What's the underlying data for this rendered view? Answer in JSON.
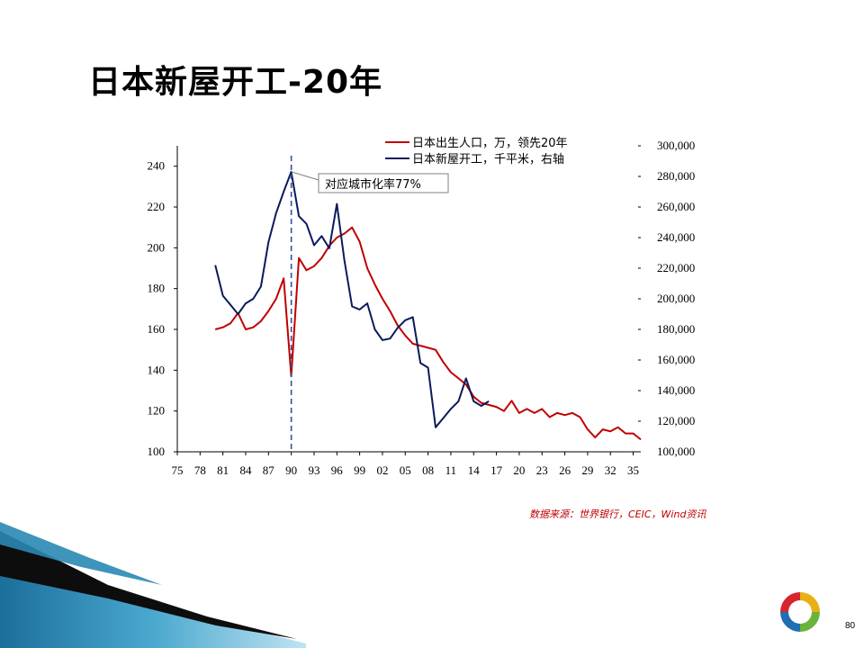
{
  "slide": {
    "title": "日本新屋开工-20年",
    "source": "数据来源：世界银行，CEIC，Wind资讯",
    "page_number": "80"
  },
  "colors": {
    "births": "#c00000",
    "housing": "#0a1a5c",
    "dashed_line": "#2e5597"
  },
  "chart_data": {
    "type": "line",
    "x_ticks": [
      "75",
      "78",
      "81",
      "84",
      "87",
      "90",
      "93",
      "96",
      "99",
      "02",
      "05",
      "08",
      "11",
      "14",
      "17",
      "20",
      "23",
      "26",
      "29",
      "32",
      "35"
    ],
    "xlim": [
      1975,
      2036
    ],
    "left_axis": {
      "ylim": [
        100,
        250
      ],
      "ticks": [
        "100",
        "120",
        "140",
        "160",
        "180",
        "200",
        "220",
        "240"
      ]
    },
    "right_axis": {
      "ylim": [
        100000,
        300000
      ],
      "ticks": [
        "100,000",
        "120,000",
        "140,000",
        "160,000",
        "180,000",
        "200,000",
        "220,000",
        "240,000",
        "260,000",
        "280,000",
        "300,000"
      ]
    },
    "callout": {
      "text": "对应城市化率77%",
      "x": 1990
    },
    "legend": [
      {
        "label": "日本出生人口，万，领先20年"
      },
      {
        "label": "日本新屋开工，千平米，右轴"
      }
    ],
    "series": [
      {
        "name": "日本出生人口，万，领先20年",
        "axis": "left",
        "x": [
          1980,
          1981,
          1982,
          1983,
          1984,
          1985,
          1986,
          1987,
          1988,
          1989,
          1990,
          1991,
          1992,
          1993,
          1994,
          1995,
          1996,
          1997,
          1998,
          1999,
          2000,
          2001,
          2002,
          2003,
          2004,
          2005,
          2006,
          2007,
          2008,
          2009,
          2010,
          2011,
          2012,
          2013,
          2014,
          2015,
          2016,
          2017,
          2018,
          2019,
          2020,
          2021,
          2022,
          2023,
          2024,
          2025,
          2026,
          2027,
          2028,
          2029,
          2030,
          2031,
          2032,
          2033,
          2034,
          2035,
          2036
        ],
        "values": [
          160,
          161,
          163,
          168,
          160,
          161,
          164,
          169,
          175,
          185,
          137,
          195,
          189,
          191,
          195,
          201,
          205,
          207,
          210,
          203,
          190,
          182,
          175,
          169,
          162,
          157,
          153,
          152,
          151,
          150,
          144,
          139,
          136,
          133,
          127,
          124,
          123,
          122,
          120,
          125,
          119,
          121,
          119,
          121,
          117,
          119,
          118,
          119,
          117,
          111,
          107,
          111,
          110,
          112,
          109,
          109,
          106
        ]
      },
      {
        "name": "日本新屋开工，千平米，右轴",
        "axis": "right",
        "x": [
          1980,
          1981,
          1982,
          1983,
          1984,
          1985,
          1986,
          1987,
          1988,
          1989,
          1990,
          1991,
          1992,
          1993,
          1994,
          1995,
          1996,
          1997,
          1998,
          1999,
          2000,
          2001,
          2002,
          2003,
          2004,
          2005,
          2006,
          2007,
          2008,
          2009,
          2010,
          2011,
          2012,
          2013,
          2014,
          2015,
          2016
        ],
        "values": [
          222,
          202,
          196,
          190,
          197,
          200,
          208,
          237,
          256,
          270,
          283,
          254,
          249,
          235,
          241,
          233,
          262,
          225,
          195,
          193,
          197,
          180,
          173,
          174,
          181,
          186,
          188,
          158,
          155,
          116,
          122,
          128,
          133,
          148,
          133,
          130,
          133
        ],
        "values_unit_note_hidden": null
      }
    ]
  }
}
